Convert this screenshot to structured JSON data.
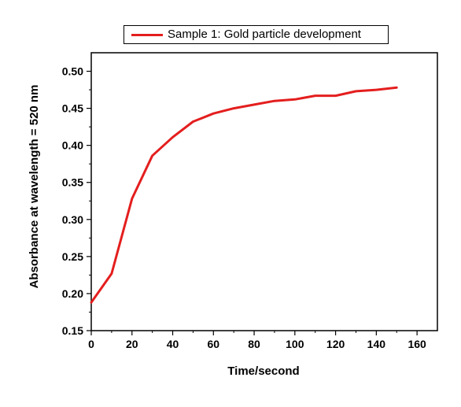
{
  "chart_data": {
    "type": "line",
    "xlabel": "Time/second",
    "ylabel": "Absorbance at wavelength = 520 nm",
    "xlim": [
      0,
      170
    ],
    "ylim": [
      0.15,
      0.525
    ],
    "x_ticks": [
      "0",
      "20",
      "40",
      "60",
      "80",
      "100",
      "120",
      "140",
      "160"
    ],
    "y_ticks": [
      "0.15",
      "0.20",
      "0.25",
      "0.30",
      "0.35",
      "0.40",
      "0.45",
      "0.50"
    ],
    "legend_position": "top",
    "grid": false,
    "series": [
      {
        "name": "Sample 1: Gold particle development",
        "color": "#e41e1e",
        "x": [
          0,
          10,
          20,
          30,
          40,
          50,
          60,
          70,
          80,
          90,
          100,
          110,
          120,
          130,
          140,
          150
        ],
        "y": [
          0.188,
          0.227,
          0.328,
          0.386,
          0.411,
          0.432,
          0.443,
          0.45,
          0.455,
          0.46,
          0.462,
          0.467,
          0.467,
          0.473,
          0.475,
          0.478
        ]
      }
    ]
  }
}
